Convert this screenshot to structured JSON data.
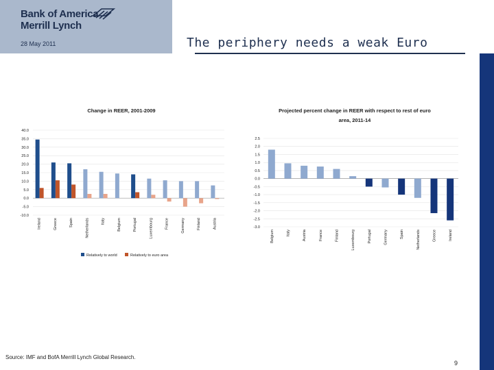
{
  "brand": {
    "line1": "Bank of America",
    "line2": "Merrill Lynch"
  },
  "date": "28 May 2011",
  "title": "The periphery needs a weak Euro",
  "source": "Source: IMF and BofA Merrill Lynch Global Research.",
  "page_number": "9",
  "colors": {
    "dark_blue": "#1f4e8c",
    "light_blue": "#8fa9cf",
    "dark_orange": "#c0552a",
    "light_orange": "#e8a48a",
    "navy": "#15357a"
  },
  "chart_data": [
    {
      "type": "bar",
      "title": "Change in REER, 2001-2009",
      "categories": [
        "Ireland",
        "Greece",
        "Spain",
        "Netherlands",
        "Italy",
        "Belgium",
        "Portugal",
        "Luxembourg",
        "France",
        "Germany",
        "Finland",
        "Austria"
      ],
      "series": [
        {
          "name": "Relatively to world",
          "values": [
            34.5,
            21.0,
            20.5,
            17.0,
            15.5,
            14.5,
            14.0,
            11.5,
            10.5,
            10.0,
            10.0,
            7.5
          ]
        },
        {
          "name": "Relatively to euro area",
          "values": [
            6.0,
            10.5,
            8.0,
            2.5,
            2.5,
            0.0,
            3.5,
            2.0,
            -2.0,
            -5.0,
            -3.0,
            -0.5
          ]
        }
      ],
      "y_ticks": [
        "40.0",
        "35.0",
        "30.0",
        "25.0",
        "20.0",
        "15.0",
        "10.0",
        "5.0",
        "0.0",
        "-5.0",
        "-10.0"
      ],
      "ylim": [
        -10,
        40
      ],
      "legend": "bottom"
    },
    {
      "type": "bar",
      "title": "Projected percent change in REER with respect to rest of euro area, 2011-14",
      "title_lines": [
        "Projected percent change in REER with respect to rest of euro",
        "area, 2011-14"
      ],
      "categories": [
        "Belgium",
        "Italy",
        "Austria",
        "France",
        "Finland",
        "Luxembourg",
        "Portugal",
        "Germany",
        "Spain",
        "Netherlands",
        "Greece",
        "Ireland"
      ],
      "values": [
        1.8,
        0.95,
        0.8,
        0.75,
        0.6,
        0.15,
        -0.5,
        -0.55,
        -1.0,
        -1.2,
        -2.15,
        -2.6
      ],
      "highlight": [
        false,
        false,
        false,
        false,
        false,
        false,
        true,
        false,
        true,
        false,
        true,
        true
      ],
      "y_ticks": [
        "2.5",
        "2.0",
        "1.5",
        "1.0",
        "0.5",
        "0.0",
        "-0.5",
        "-1.0",
        "-1.5",
        "-2.0",
        "-2.5",
        "-3.0"
      ],
      "ylim": [
        -3,
        2.5
      ]
    }
  ]
}
